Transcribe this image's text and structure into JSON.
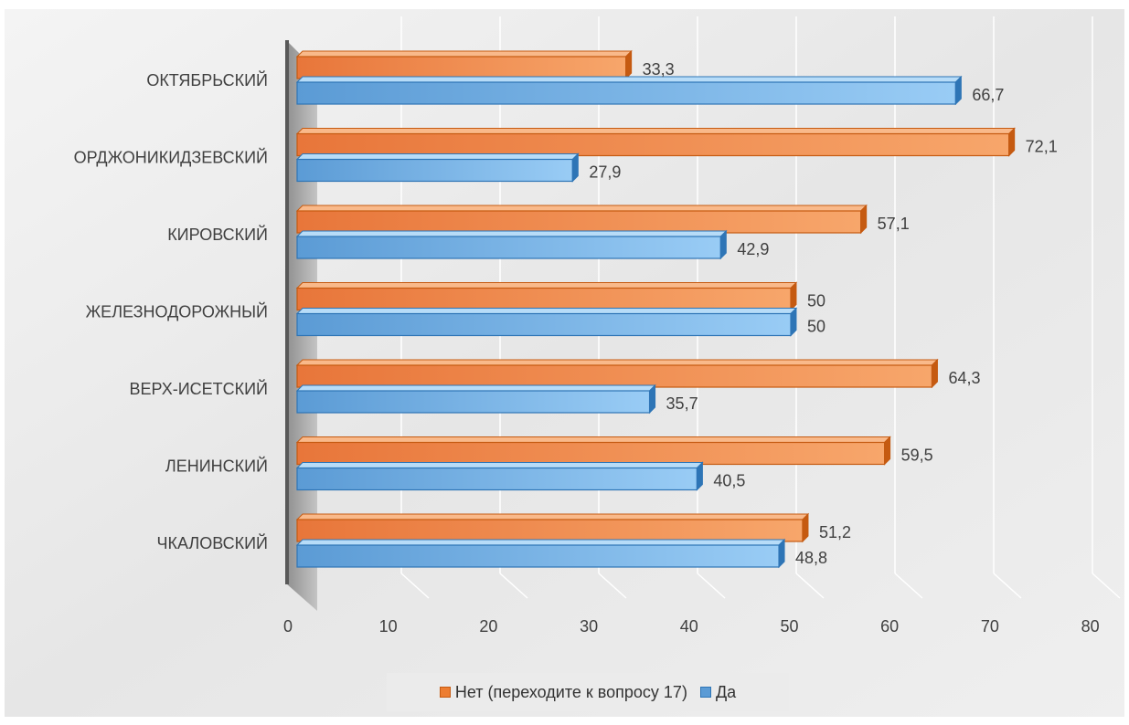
{
  "chart_data": {
    "type": "bar",
    "orientation": "horizontal",
    "categories": [
      "ОКТЯБРЬСКИЙ",
      "ОРДЖОНИКИДЗЕВСКИЙ",
      "КИРОВСКИЙ",
      "ЖЕЛЕЗНОДОРОЖНЫЙ",
      "ВЕРХ-ИСЕТСКИЙ",
      "ЛЕНИНСКИЙ",
      "ЧКАЛОВСКИЙ"
    ],
    "series": [
      {
        "name": "Нет (переходите к вопросу 17)",
        "color": "#ed7d31",
        "values": [
          33.3,
          72.1,
          57.1,
          50,
          64.3,
          59.5,
          51.2
        ],
        "value_labels": [
          "33,3",
          "72,1",
          "57,1",
          "50",
          "64,3",
          "59,5",
          "51,2"
        ]
      },
      {
        "name": "Да",
        "color": "#5b9bd5",
        "values": [
          66.7,
          27.9,
          42.9,
          50,
          35.7,
          40.5,
          48.8
        ],
        "value_labels": [
          "66,7",
          "27,9",
          "42,9",
          "50",
          "35,7",
          "40,5",
          "48,8"
        ]
      }
    ],
    "xlim": [
      0,
      80
    ],
    "x_ticks": [
      0,
      10,
      20,
      30,
      40,
      50,
      60,
      70,
      80
    ],
    "x_tick_labels": [
      "0",
      "10",
      "20",
      "30",
      "40",
      "50",
      "60",
      "70",
      "80"
    ],
    "grid": true,
    "legend_position": "bottom",
    "style": "3d-clustered-bar"
  }
}
